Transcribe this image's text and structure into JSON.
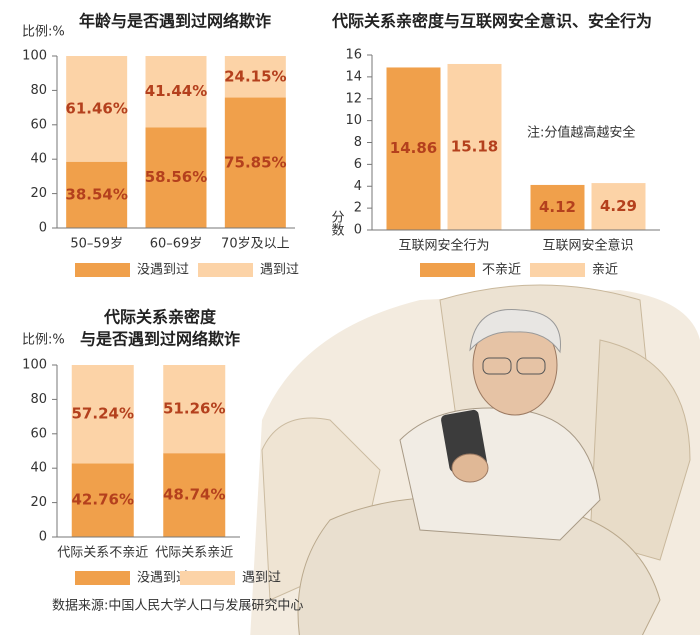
{
  "chart_data": [
    {
      "type": "bar",
      "stacked": true,
      "title": "年龄与是否遇到过网络欺诈",
      "y_label": "比例:%",
      "categories": [
        "50–59岁",
        "60–69岁",
        "70岁及以上"
      ],
      "series": [
        {
          "name": "没遇到过",
          "color": "#f0a04b",
          "values": [
            38.54,
            58.56,
            75.85
          ],
          "value_labels": [
            "38.54%",
            "58.56%",
            "75.85%"
          ]
        },
        {
          "name": "遇到过",
          "color": "#fcd3a7",
          "values": [
            61.46,
            41.44,
            24.15
          ],
          "value_labels": [
            "61.46%",
            "41.44%",
            "24.15%"
          ]
        }
      ],
      "ylim": [
        0,
        100
      ],
      "yticks": [
        0,
        20,
        40,
        60,
        80,
        100
      ]
    },
    {
      "type": "bar",
      "stacked": false,
      "title": "代际关系亲密度与互联网安全意识、安全行为",
      "y_label": "分数",
      "annotation": "注:分值越高越安全",
      "categories": [
        "互联网安全行为",
        "互联网安全意识"
      ],
      "series": [
        {
          "name": "不亲近",
          "color": "#f0a04b",
          "values": [
            14.86,
            4.12
          ]
        },
        {
          "name": "亲近",
          "color": "#fcd3a7",
          "values": [
            15.18,
            4.29
          ]
        }
      ],
      "ylim": [
        0,
        16
      ],
      "yticks": [
        0,
        2,
        4,
        6,
        8,
        10,
        12,
        14,
        16
      ]
    },
    {
      "type": "bar",
      "stacked": true,
      "title": [
        "代际关系亲密度",
        "与是否遇到过网络欺诈"
      ],
      "y_label": "比例:%",
      "categories": [
        "代际关系不亲近",
        "代际关系亲近"
      ],
      "series": [
        {
          "name": "没遇到过",
          "color": "#f0a04b",
          "values": [
            42.76,
            48.74
          ],
          "value_labels": [
            "42.76%",
            "48.74%"
          ]
        },
        {
          "name": "遇到过",
          "color": "#fcd3a7",
          "values": [
            57.24,
            51.26
          ],
          "value_labels": [
            "57.24%",
            "51.26%"
          ]
        }
      ],
      "ylim": [
        0,
        100
      ],
      "yticks": [
        0,
        20,
        40,
        60,
        80,
        100
      ]
    }
  ],
  "source": "数据来源:中国人民大学人口与发展研究中心"
}
